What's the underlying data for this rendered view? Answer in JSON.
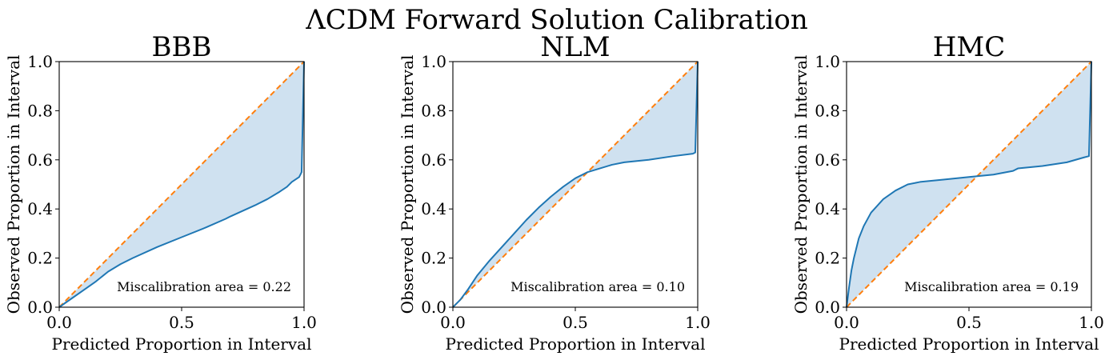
{
  "figure": {
    "suptitle": "ΛCDM Forward Solution Calibration"
  },
  "chart_data": [
    {
      "type": "line",
      "title": "BBB",
      "xlabel": "Predicted Proportion in Interval",
      "ylabel": "Observed Proportion in Interval",
      "xlim": [
        0,
        1
      ],
      "ylim": [
        0,
        1
      ],
      "xticks": [
        "0.0",
        "0.5",
        "1.0"
      ],
      "yticks": [
        "0.0",
        "0.2",
        "0.4",
        "0.6",
        "0.8",
        "1.0"
      ],
      "annotation": "Miscalibration area = 0.22",
      "grid": false,
      "colors": {
        "model": "#1f77b4",
        "ideal": "#ff7f0e",
        "fill": "#cfe1f0"
      },
      "series": [
        {
          "x": [
            0.0,
            0.05,
            0.1,
            0.15,
            0.2,
            0.25,
            0.3,
            0.4,
            0.5,
            0.6,
            0.68,
            0.7,
            0.8,
            0.85,
            0.9,
            0.93,
            0.95,
            0.98,
            0.99,
            1.0
          ],
          "y": [
            0.0,
            0.035,
            0.07,
            0.105,
            0.145,
            0.175,
            0.2,
            0.245,
            0.285,
            0.325,
            0.36,
            0.37,
            0.415,
            0.44,
            0.47,
            0.49,
            0.51,
            0.53,
            0.55,
            1.0
          ]
        },
        {
          "x": [
            0,
            1
          ],
          "y": [
            0,
            1
          ],
          "dashed": true
        }
      ]
    },
    {
      "type": "line",
      "title": "NLM",
      "xlabel": "Predicted Proportion in Interval",
      "ylabel": "Observed Proportion in Interval",
      "xlim": [
        0,
        1
      ],
      "ylim": [
        0,
        1
      ],
      "xticks": [
        "0.0",
        "0.5",
        "1.0"
      ],
      "yticks": [
        "0.0",
        "0.2",
        "0.4",
        "0.6",
        "0.8",
        "1.0"
      ],
      "annotation": "Miscalibration area = 0.10",
      "grid": false,
      "colors": {
        "model": "#1f77b4",
        "ideal": "#ff7f0e",
        "fill": "#cfe1f0"
      },
      "series": [
        {
          "x": [
            0.0,
            0.03,
            0.06,
            0.1,
            0.15,
            0.2,
            0.25,
            0.3,
            0.35,
            0.4,
            0.45,
            0.5,
            0.55,
            0.6,
            0.65,
            0.7,
            0.8,
            0.9,
            0.98,
            0.99,
            1.0
          ],
          "y": [
            0.0,
            0.03,
            0.07,
            0.13,
            0.19,
            0.245,
            0.3,
            0.355,
            0.405,
            0.45,
            0.49,
            0.525,
            0.55,
            0.565,
            0.58,
            0.59,
            0.6,
            0.615,
            0.625,
            0.63,
            1.0
          ]
        },
        {
          "x": [
            0,
            1
          ],
          "y": [
            0,
            1
          ],
          "dashed": true
        }
      ]
    },
    {
      "type": "line",
      "title": "HMC",
      "xlabel": "Predicted Proportion in Interval",
      "ylabel": "Observed Proportion in Interval",
      "xlim": [
        0,
        1
      ],
      "ylim": [
        0,
        1
      ],
      "xticks": [
        "0.0",
        "0.5",
        "1.0"
      ],
      "yticks": [
        "0.0",
        "0.2",
        "0.4",
        "0.6",
        "0.8",
        "1.0"
      ],
      "annotation": "Miscalibration area = 0.19",
      "grid": false,
      "colors": {
        "model": "#1f77b4",
        "ideal": "#ff7f0e",
        "fill": "#cfe1f0"
      },
      "series": [
        {
          "x": [
            0.0,
            0.01,
            0.02,
            0.03,
            0.05,
            0.07,
            0.1,
            0.15,
            0.2,
            0.25,
            0.3,
            0.4,
            0.5,
            0.6,
            0.68,
            0.7,
            0.8,
            0.9,
            0.97,
            0.99,
            1.0
          ],
          "y": [
            0.0,
            0.08,
            0.15,
            0.2,
            0.28,
            0.33,
            0.385,
            0.44,
            0.475,
            0.5,
            0.51,
            0.52,
            0.53,
            0.54,
            0.555,
            0.565,
            0.575,
            0.59,
            0.61,
            0.615,
            1.0
          ]
        },
        {
          "x": [
            0,
            1
          ],
          "y": [
            0,
            1
          ],
          "dashed": true
        }
      ]
    }
  ]
}
